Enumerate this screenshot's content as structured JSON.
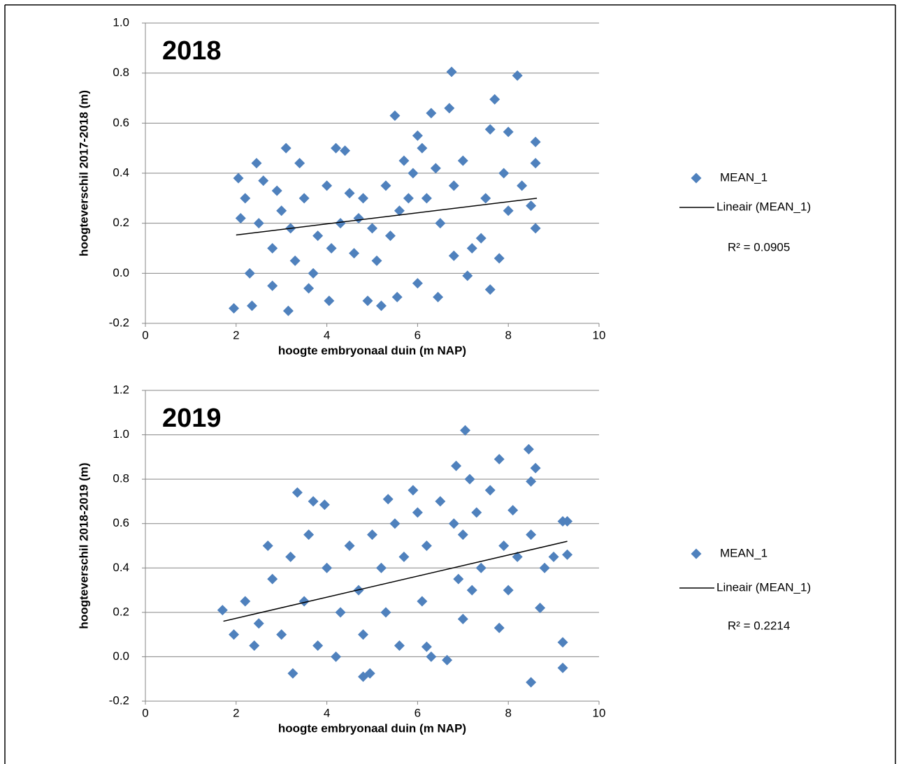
{
  "chart_data": [
    {
      "type": "scatter",
      "annotation": "2018",
      "xlabel": "hoogte embryonaal duin (m NAP)",
      "ylabel": "hoogteverschil 2017-2018 (m)",
      "xlim": [
        0,
        10
      ],
      "xticks": [
        0,
        2,
        4,
        6,
        8,
        10
      ],
      "ylim": [
        -0.2,
        1.0
      ],
      "yticks": [
        -0.2,
        {
          "value": 0,
          "label": "0.0"
        },
        0.2,
        0.4,
        0.6,
        0.8,
        {
          "value": 1.0,
          "label": "1.0"
        }
      ],
      "grid": true,
      "series": [
        {
          "name": "MEAN_1",
          "color": "#4f81bd",
          "x": [
            6.75,
            8.2,
            7.7,
            6.3,
            6.7,
            5.5,
            7.6,
            8.0,
            8.6,
            3.1,
            4.2,
            4.4,
            1.95,
            3.15,
            2.35,
            4.05,
            5.2,
            4.9,
            5.55,
            6.45,
            7.6,
            6.0,
            7.1,
            7.8,
            8.6,
            8.6,
            2.45,
            3.4,
            2.05,
            7.2,
            7.4,
            6.8,
            3.6,
            2.8,
            2.2,
            2.5,
            2.8,
            3.0,
            3.3,
            3.5,
            3.8,
            4.0,
            4.3,
            4.6,
            4.8,
            5.0,
            5.3,
            5.6,
            5.9,
            6.2,
            6.5,
            6.8,
            7.0,
            2.3,
            2.6,
            3.2,
            3.7,
            4.1,
            4.5,
            5.1,
            5.4,
            5.7,
            6.1,
            6.4,
            2.1,
            2.9,
            4.7,
            5.8,
            6.0,
            7.5,
            8.0,
            8.3,
            7.9,
            8.5
          ],
          "values": [
            0.805,
            0.79,
            0.695,
            0.64,
            0.66,
            0.63,
            0.575,
            0.565,
            0.525,
            0.5,
            0.5,
            0.49,
            -0.14,
            -0.15,
            -0.13,
            -0.11,
            -0.13,
            -0.11,
            -0.095,
            -0.095,
            -0.065,
            -0.04,
            -0.01,
            0.06,
            0.18,
            0.44,
            0.44,
            0.44,
            0.38,
            0.1,
            0.14,
            0.07,
            -0.06,
            -0.05,
            0.3,
            0.2,
            0.1,
            0.25,
            0.05,
            0.3,
            0.15,
            0.35,
            0.2,
            0.08,
            0.3,
            0.18,
            0.35,
            0.25,
            0.4,
            0.3,
            0.2,
            0.35,
            0.45,
            0.0,
            0.37,
            0.18,
            0.0,
            0.1,
            0.32,
            0.05,
            0.15,
            0.45,
            0.5,
            0.42,
            0.22,
            0.33,
            0.22,
            0.3,
            0.55,
            0.3,
            0.25,
            0.35,
            0.4,
            0.27
          ]
        },
        {
          "name": "Lineair (MEAN_1)",
          "color": "#000000",
          "type": "line",
          "x": [
            2.0,
            8.63
          ],
          "values": [
            0.153,
            0.3
          ]
        }
      ],
      "r_squared": "R² = 0.0905"
    },
    {
      "type": "scatter",
      "annotation": "2019",
      "xlabel": "hoogte embryonaal duin (m NAP)",
      "ylabel": "hoogteverschil 2018-2019 (m)",
      "xlim": [
        0,
        10
      ],
      "xticks": [
        0,
        2,
        4,
        6,
        8,
        10
      ],
      "ylim": [
        -0.2,
        1.2
      ],
      "yticks": [
        -0.2,
        {
          "value": 0,
          "label": "0.0"
        },
        0.2,
        0.4,
        0.6,
        0.8,
        {
          "value": 1.0,
          "label": "1.0"
        },
        1.2
      ],
      "grid": true,
      "series": [
        {
          "name": "MEAN_1",
          "color": "#4f81bd",
          "x": [
            7.05,
            8.45,
            6.85,
            8.6,
            7.8,
            7.15,
            8.5,
            3.35,
            3.7,
            3.95,
            5.35,
            9.2,
            9.3,
            9.3,
            9.2,
            9.2,
            8.5,
            3.25,
            4.8,
            4.95,
            6.65,
            6.2,
            5.6,
            6.3,
            7.0,
            7.8,
            8.7,
            1.7,
            1.95,
            8.5,
            8.1,
            2.2,
            2.5,
            2.8,
            3.0,
            3.2,
            3.5,
            3.8,
            4.0,
            4.3,
            4.5,
            4.7,
            5.0,
            5.2,
            5.5,
            5.7,
            6.0,
            6.2,
            6.5,
            6.8,
            7.0,
            7.3,
            7.6,
            7.9,
            8.2,
            2.4,
            3.6,
            4.2,
            5.3,
            6.1,
            6.9,
            7.4,
            8.0,
            8.8,
            9.0,
            2.7,
            4.8,
            5.9,
            7.2
          ],
          "values": [
            1.02,
            0.935,
            0.86,
            0.85,
            0.89,
            0.8,
            0.79,
            0.74,
            0.7,
            0.685,
            0.71,
            0.61,
            0.61,
            0.46,
            0.065,
            -0.05,
            -0.115,
            -0.075,
            -0.09,
            -0.075,
            -0.015,
            0.045,
            0.05,
            0.0,
            0.17,
            0.13,
            0.22,
            0.21,
            0.1,
            0.55,
            0.66,
            0.25,
            0.15,
            0.35,
            0.1,
            0.45,
            0.25,
            0.05,
            0.4,
            0.2,
            0.5,
            0.3,
            0.55,
            0.4,
            0.6,
            0.45,
            0.65,
            0.5,
            0.7,
            0.6,
            0.55,
            0.65,
            0.75,
            0.5,
            0.45,
            0.05,
            0.55,
            0.0,
            0.2,
            0.25,
            0.35,
            0.4,
            0.3,
            0.4,
            0.45,
            0.5,
            0.1,
            0.75,
            0.3
          ]
        },
        {
          "name": "Lineair (MEAN_1)",
          "color": "#000000",
          "type": "line",
          "x": [
            1.72,
            9.3
          ],
          "values": [
            0.16,
            0.52
          ]
        }
      ],
      "r_squared": "R² = 0.2214"
    }
  ]
}
